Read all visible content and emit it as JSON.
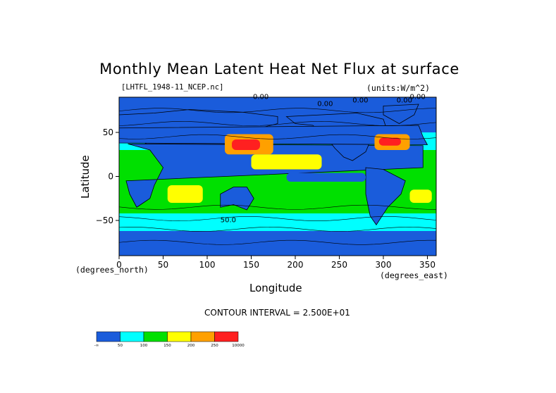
{
  "chart_data": {
    "type": "heatmap",
    "title": "Monthly Mean Latent Heat Net Flux at surface",
    "subtitle_left": "[LHTFL_1948-11_NCEP.nc]",
    "subtitle_right": "(units:W/m^2)",
    "xlabel": "Longitude",
    "ylabel": "Latitude",
    "x_unit_note": "(degrees_east)",
    "y_unit_note": "(degrees_north)",
    "xlim": [
      0,
      360
    ],
    "ylim": [
      -90,
      90
    ],
    "x_ticks": [
      0,
      50,
      100,
      150,
      200,
      250,
      300,
      350
    ],
    "y_ticks": [
      -50,
      0,
      50
    ],
    "contour_interval_label": "CONTOUR INTERVAL = 2.500E+01",
    "colorbar": {
      "colors": [
        "#1a5cdb",
        "#00ffff",
        "#00e000",
        "#ffff00",
        "#ffa000",
        "#ff2020"
      ],
      "labels": [
        "-∞",
        "50",
        "100",
        "150",
        "200",
        "250",
        "10000"
      ]
    },
    "contour_labels": [
      "0.00",
      "0.00",
      "0.00",
      "0.00",
      "0.00",
      "50.0"
    ],
    "field_bands": [
      {
        "lat_range": [
          -90,
          -62
        ],
        "value": 10
      },
      {
        "lat_range": [
          -62,
          -42
        ],
        "value": 60
      },
      {
        "lat_range": [
          -42,
          -28
        ],
        "value": 110
      },
      {
        "lat_range": [
          -28,
          30
        ],
        "value": 140
      },
      {
        "lat_range": [
          30,
          50
        ],
        "value": 70
      },
      {
        "lat_range": [
          50,
          90
        ],
        "value": 15
      }
    ]
  }
}
